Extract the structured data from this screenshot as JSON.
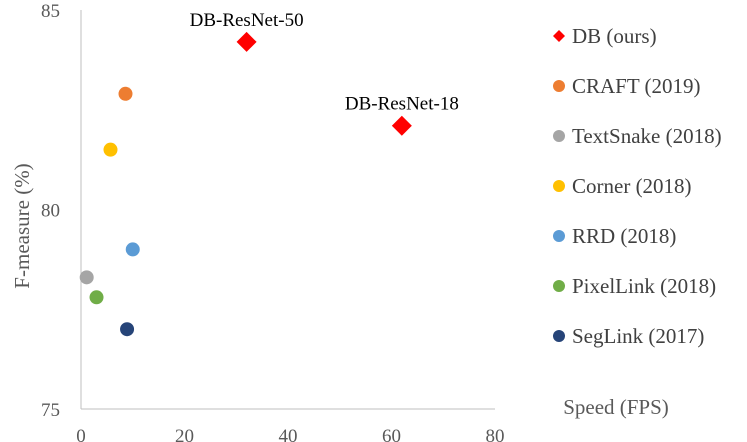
{
  "chart_data": {
    "type": "scatter",
    "title": "",
    "xlabel": "Speed (FPS)",
    "ylabel": "F-measure (%)",
    "xlim": [
      0,
      80
    ],
    "ylim": [
      75,
      85
    ],
    "xticks": [
      "0",
      "20",
      "40",
      "60",
      "80"
    ],
    "yticks": [
      "75",
      "80",
      "85"
    ],
    "grid": false,
    "legend_position": "right",
    "series": [
      {
        "name": "DB (ours)",
        "marker": "diamond",
        "color": "#ff0000",
        "points": [
          {
            "x": 32,
            "y": 84.2
          },
          {
            "x": 62,
            "y": 82.1
          }
        ]
      },
      {
        "name": "CRAFT (2019)",
        "marker": "circle",
        "color": "#ed7d31",
        "points": [
          {
            "x": 8.6,
            "y": 82.9
          }
        ]
      },
      {
        "name": "TextSnake (2018)",
        "marker": "circle",
        "color": "#a5a5a5",
        "points": [
          {
            "x": 1.1,
            "y": 78.3
          }
        ]
      },
      {
        "name": "Corner (2018)",
        "marker": "circle",
        "color": "#ffc000",
        "points": [
          {
            "x": 5.7,
            "y": 81.5
          }
        ]
      },
      {
        "name": "RRD (2018)",
        "marker": "circle",
        "color": "#5b9bd5",
        "points": [
          {
            "x": 10,
            "y": 79.0
          }
        ]
      },
      {
        "name": "PixelLink (2018)",
        "marker": "circle",
        "color": "#70ad47",
        "points": [
          {
            "x": 3,
            "y": 77.8
          }
        ]
      },
      {
        "name": "SegLink (2017)",
        "marker": "circle",
        "color": "#264478",
        "points": [
          {
            "x": 8.9,
            "y": 77.0
          }
        ]
      }
    ],
    "annotations": [
      {
        "text": "DB-ResNet-50",
        "x": 32,
        "y": 84.2
      },
      {
        "text": "DB-ResNet-18",
        "x": 62,
        "y": 82.1
      }
    ]
  }
}
